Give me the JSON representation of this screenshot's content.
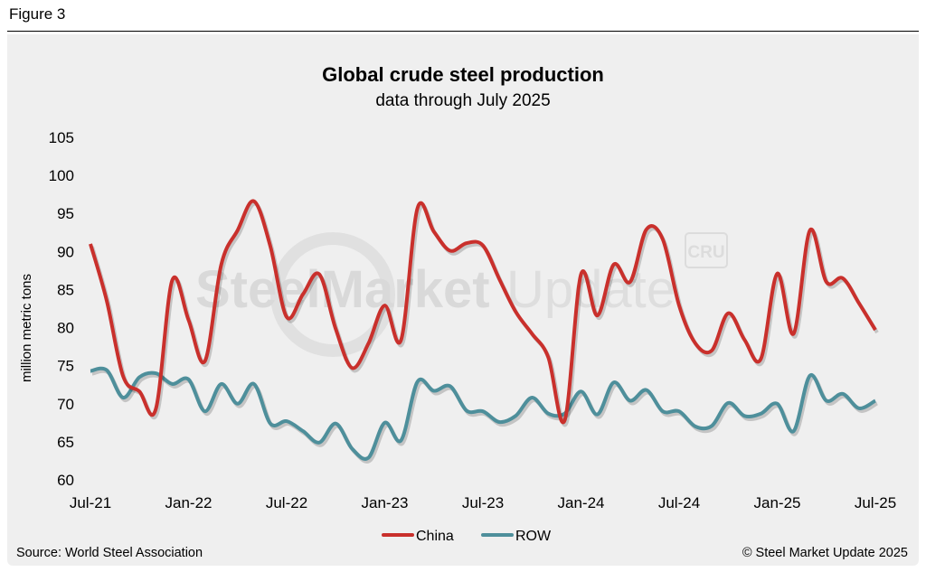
{
  "figure_label": "Figure 3",
  "source": "Source: World Steel Association",
  "copyright": "© Steel Market Update 2025",
  "watermark": {
    "bold": "SteelMarket",
    "light": "Update",
    "badge": "CRU"
  },
  "colors": {
    "china": "#c9302c",
    "row": "#4e8f9b",
    "background": "#efefef"
  },
  "chart_data": {
    "type": "line",
    "title": "Global crude steel production",
    "subtitle": "data through July 2025",
    "ylabel": "million metric tons",
    "xlabel": "",
    "ylim": [
      60,
      105
    ],
    "yticks": [
      60,
      65,
      70,
      75,
      80,
      85,
      90,
      95,
      100,
      105
    ],
    "xtick_labels": [
      "Jul-21",
      "Jan-22",
      "Jul-22",
      "Jan-23",
      "Jul-23",
      "Jan-24",
      "Jul-24",
      "Jan-25",
      "Jul-25"
    ],
    "x": [
      "Jul-21",
      "Aug-21",
      "Sep-21",
      "Oct-21",
      "Nov-21",
      "Dec-21",
      "Jan-22",
      "Feb-22",
      "Mar-22",
      "Apr-22",
      "May-22",
      "Jun-22",
      "Jul-22",
      "Aug-22",
      "Sep-22",
      "Oct-22",
      "Nov-22",
      "Dec-22",
      "Jan-23",
      "Feb-23",
      "Mar-23",
      "Apr-23",
      "May-23",
      "Jun-23",
      "Jul-23",
      "Aug-23",
      "Sep-23",
      "Oct-23",
      "Nov-23",
      "Dec-23",
      "Jan-24",
      "Feb-24",
      "Mar-24",
      "Apr-24",
      "May-24",
      "Jun-24",
      "Jul-24",
      "Aug-24",
      "Sep-24",
      "Oct-24",
      "Nov-24",
      "Dec-24",
      "Jan-25",
      "Feb-25",
      "Mar-25",
      "Apr-25",
      "May-25",
      "Jun-25",
      "Jul-25"
    ],
    "series": [
      {
        "name": "China",
        "values": [
          91.0,
          83.5,
          73.6,
          71.6,
          69.3,
          86.2,
          81.0,
          75.6,
          88.3,
          92.8,
          96.6,
          90.7,
          81.4,
          84.4,
          87.0,
          79.8,
          74.7,
          77.9,
          82.9,
          78.4,
          95.7,
          92.6,
          90.1,
          91.1,
          90.8,
          86.4,
          82.1,
          79.2,
          76.1,
          67.8,
          87.0,
          81.6,
          88.3,
          86.0,
          92.9,
          91.6,
          82.9,
          77.9,
          77.0,
          81.9,
          78.4,
          75.9,
          87.1,
          79.2,
          92.8,
          86.0,
          86.5,
          83.2,
          79.7
        ]
      },
      {
        "name": "ROW",
        "values": [
          74.3,
          74.4,
          70.8,
          73.5,
          74.0,
          72.6,
          73.2,
          69.0,
          72.6,
          70.0,
          72.6,
          67.4,
          67.7,
          66.4,
          64.9,
          67.4,
          64.1,
          62.9,
          67.5,
          65.2,
          72.9,
          71.7,
          72.3,
          69.1,
          69.0,
          67.6,
          68.4,
          70.8,
          68.7,
          68.7,
          71.6,
          68.6,
          72.8,
          70.4,
          71.8,
          69.0,
          69.0,
          67.0,
          67.1,
          70.1,
          68.4,
          68.7,
          70.0,
          66.4,
          73.7,
          70.4,
          71.3,
          69.4,
          70.4
        ]
      }
    ],
    "legend": "bottom-center",
    "grid": false
  }
}
